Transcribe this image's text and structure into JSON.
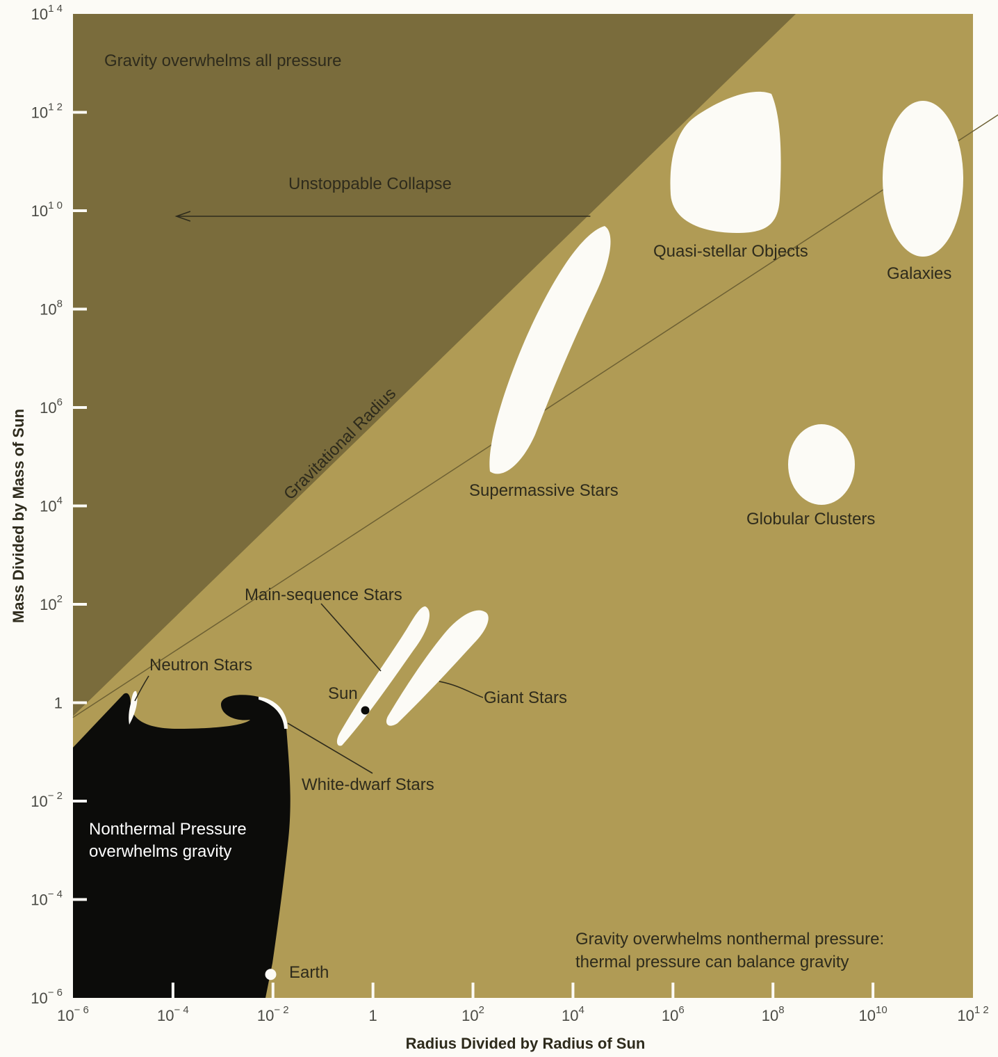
{
  "chart_data": {
    "type": "scatter",
    "title": "",
    "xlabel": "Radius Divided by Radius of Sun",
    "ylabel": "Mass Divided by Mass of Sun",
    "x_scale": "log",
    "y_scale": "log",
    "xlim": [
      1e-06,
      1000000000000.0
    ],
    "ylim": [
      1e-06,
      100000000000000.0
    ],
    "x_ticks": [
      {
        "value": 1e-06,
        "base": "10",
        "exp": "− 6"
      },
      {
        "value": 0.0001,
        "base": "10",
        "exp": "− 4"
      },
      {
        "value": 0.01,
        "base": "10",
        "exp": "− 2"
      },
      {
        "value": 1,
        "base": "1",
        "exp": ""
      },
      {
        "value": 100.0,
        "base": "10",
        "exp": "2"
      },
      {
        "value": 10000.0,
        "base": "10",
        "exp": "4"
      },
      {
        "value": 1000000.0,
        "base": "10",
        "exp": "6"
      },
      {
        "value": 100000000.0,
        "base": "10",
        "exp": "8"
      },
      {
        "value": 10000000000.0,
        "base": "10",
        "exp": "10"
      },
      {
        "value": 1000000000000.0,
        "base": "10",
        "exp": "1 2"
      }
    ],
    "y_ticks": [
      {
        "value": 100000000000000.0,
        "base": "10",
        "exp": "1 4"
      },
      {
        "value": 1000000000000.0,
        "base": "10",
        "exp": "1 2"
      },
      {
        "value": 10000000000.0,
        "base": "10",
        "exp": "1 0"
      },
      {
        "value": 100000000.0,
        "base": "10",
        "exp": "8"
      },
      {
        "value": 1000000.0,
        "base": "10",
        "exp": "6"
      },
      {
        "value": 10000.0,
        "base": "10",
        "exp": "4"
      },
      {
        "value": 100.0,
        "base": "10",
        "exp": "2"
      },
      {
        "value": 1,
        "base": "1",
        "exp": ""
      },
      {
        "value": 0.01,
        "base": "10",
        "exp": "− 2"
      },
      {
        "value": 0.0001,
        "base": "10",
        "exp": "− 4"
      },
      {
        "value": 1e-06,
        "base": "10",
        "exp": "− 6"
      }
    ],
    "gravitational_radius_line": {
      "label": "Gravitational Radius",
      "start": {
        "x": 1e-06,
        "y": 0.5
      },
      "end": {
        "x": 4000000000000000.0,
        "y": 100000000000000.0
      }
    },
    "collapse_arrow": {
      "label": "Unstoppable Collapse",
      "from": {
        "x": 10000.0,
        "y": 10000000000.0
      },
      "to": {
        "x": 0.0001,
        "y": 10000000000.0
      }
    },
    "regions": [
      {
        "name": "Gravity overwhelms all pressure"
      },
      {
        "name": "Nonthermal Pressure overwhelms gravity",
        "lines": [
          "Nonthermal Pressure",
          "overwhelms gravity"
        ]
      },
      {
        "name": "Gravity overwhelms nonthermal pressure: thermal pressure can balance gravity",
        "lines": [
          "Gravity overwhelms nonthermal pressure:",
          "thermal pressure can balance gravity"
        ]
      }
    ],
    "objects": [
      {
        "name": "Quasi-stellar Objects",
        "x_range": [
          1000000.0,
          1000000000.0
        ],
        "y_range": [
          1000000000.0,
          1000000000000.0
        ]
      },
      {
        "name": "Galaxies",
        "x_range": [
          30000000000.0,
          1000000000000.0
        ],
        "y_range": [
          300000000.0,
          1000000000000.0
        ]
      },
      {
        "name": "Supermassive Stars",
        "x_range": [
          30.0,
          100000.0
        ],
        "y_range": [
          100000.0,
          1000000000.0
        ]
      },
      {
        "name": "Globular Clusters",
        "x_range": [
          100000000.0,
          1000000000.0
        ],
        "y_range": [
          10000.0,
          500000.0
        ]
      },
      {
        "name": "Main-sequence Stars",
        "x_range": [
          0.1,
          10
        ],
        "y_range": [
          0.1,
          50
        ]
      },
      {
        "name": "Giant Stars",
        "x_range": [
          1,
          200
        ],
        "y_range": [
          0.4,
          50
        ]
      },
      {
        "name": "Neutron Stars",
        "x_range": [
          3e-06,
          1e-05
        ],
        "y_range": [
          0.3,
          2
        ]
      },
      {
        "name": "White-dwarf Stars",
        "x_range": [
          0.002,
          0.01
        ],
        "y_range": [
          0.05,
          1.4
        ]
      }
    ],
    "points": [
      {
        "name": "Sun",
        "x": 0.7,
        "y": 0.7
      },
      {
        "name": "Earth",
        "x": 0.009,
        "y": 3e-06
      }
    ],
    "colors": {
      "gravity_region": "#7a6c3c",
      "balance_region": "#b09b55",
      "nonthermal_region": "#0c0c0a",
      "objects": "#fcfbf6",
      "background": "#fcfbf6"
    }
  }
}
